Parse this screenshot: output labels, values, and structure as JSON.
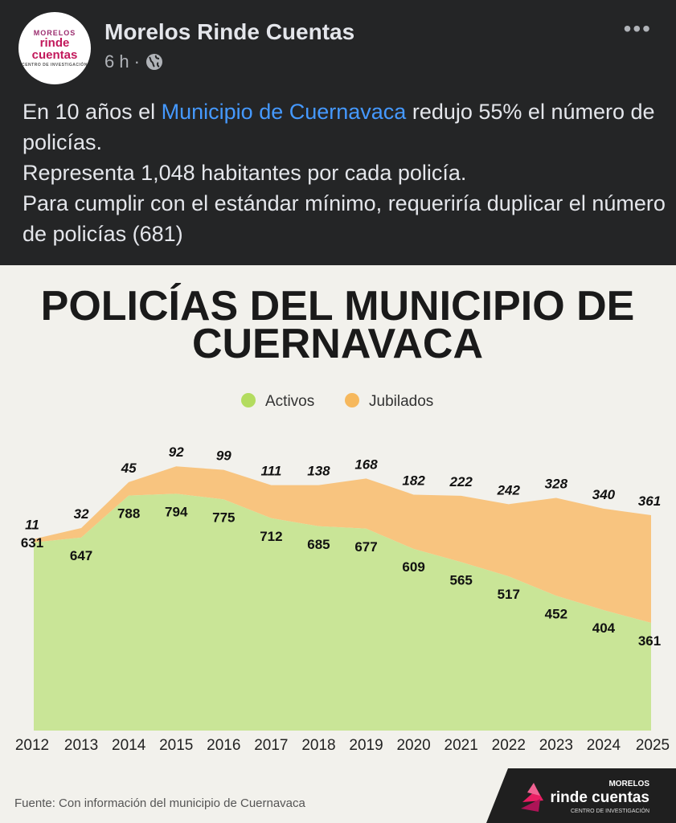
{
  "header": {
    "page_name": "Morelos Rinde Cuentas",
    "time": "6 h",
    "separator": "·",
    "more_icon": "more-options-icon",
    "privacy_icon": "globe-icon"
  },
  "avatar": {
    "line1": "MORELOS",
    "line2": "rinde",
    "line3": "cuentas",
    "line4": "CENTRO DE INVESTIGACIÓN"
  },
  "post": {
    "text_before_link": "En 10 años el ",
    "link": "Municipio de Cuernavaca",
    "text_after_link": " redujo 55% el número de policías.",
    "line2": "Representa 1,048 habitantes por cada policía.",
    "line3": "Para cumplir con el estándar mínimo, requeriría duplicar el número de policías (681)"
  },
  "infographic": {
    "title_line1": "POLICÍAS DEL MUNICIPIO DE",
    "title_line2": "CUERNAVACA",
    "source": "Fuente: Con información del municipio de Cuernavaca",
    "logo": {
      "line1": "MORELOS",
      "line2": "rinde cuentas",
      "line3": "CENTRO DE INVESTIGACIÓN"
    },
    "colors": {
      "activos": "#c9e597",
      "jubilados": "#f8c47f",
      "legend_activos": "#b3dc5f",
      "legend_jubilados": "#f6b85d"
    }
  },
  "chart_data": {
    "type": "area",
    "title": "POLICÍAS DEL MUNICIPIO DE CUERNAVACA",
    "categories": [
      "2012",
      "2013",
      "2014",
      "2015",
      "2016",
      "2017",
      "2018",
      "2019",
      "2020",
      "2021",
      "2022",
      "2023",
      "2024",
      "2025"
    ],
    "series": [
      {
        "name": "Activos",
        "values": [
          631,
          647,
          788,
          794,
          775,
          712,
          685,
          677,
          609,
          565,
          517,
          452,
          404,
          361
        ]
      },
      {
        "name": "Jubilados",
        "values": [
          11,
          32,
          45,
          92,
          99,
          111,
          138,
          168,
          182,
          222,
          242,
          328,
          340,
          361
        ]
      }
    ],
    "stacked": true,
    "legend": "top-center",
    "grid": false
  }
}
